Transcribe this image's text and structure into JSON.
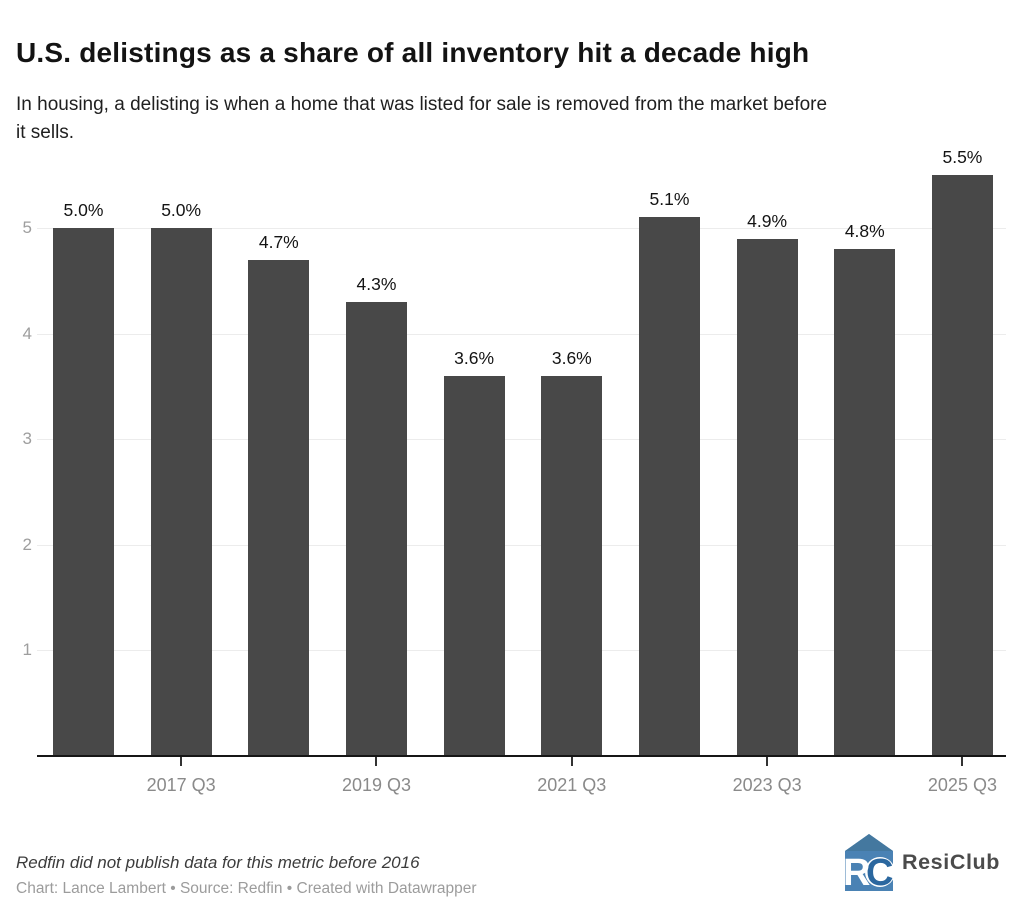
{
  "header": {
    "title": "U.S. delistings as a share of all inventory hit a decade high",
    "subtitle": "In housing, a delisting is when a home that was listed for sale is removed from the market before\nit sells."
  },
  "chart_data": {
    "type": "bar",
    "title": "U.S. delistings as a share of all inventory hit a decade high",
    "subtitle": "In housing, a delisting is when a home that was listed for sale is removed from the market before it sells.",
    "categories": [
      "",
      "2017 Q3",
      "",
      "2019 Q3",
      "",
      "2021 Q3",
      "",
      "2023 Q3",
      "",
      "2025 Q3"
    ],
    "values": [
      5.0,
      5.0,
      4.7,
      4.3,
      3.6,
      3.6,
      5.1,
      4.9,
      4.8,
      5.5
    ],
    "bar_labels": [
      "5.0%",
      "5.0%",
      "4.7%",
      "4.3%",
      "3.6%",
      "3.6%",
      "5.1%",
      "4.9%",
      "4.8%",
      "5.5%"
    ],
    "y_ticks": [
      1,
      2,
      3,
      4,
      5
    ],
    "ylim": [
      0,
      5.6
    ],
    "xlabel": "",
    "ylabel": "",
    "grid": "horizontal-on",
    "legend": "none",
    "colors": {
      "bar": "#484848",
      "gridline": "#ececec",
      "axis_line": "#161616",
      "tick": "#333333",
      "value_label": "#141414",
      "y_tick_label": "#9e9e9e",
      "x_tick_label": "#8a8a8a"
    }
  },
  "footer": {
    "note": "Redfin did not publish data for this metric before 2016",
    "credits": "Chart: Lance Lambert • Source: Redfin • Created with Datawrapper",
    "logo_text": "ResiClub",
    "logo_icon": "resiclub-house-icon",
    "logo_colors": {
      "house": "#4a82b4",
      "roof": "#44789f",
      "letter_c": "#2b679f",
      "letters": "#ffffff"
    }
  }
}
